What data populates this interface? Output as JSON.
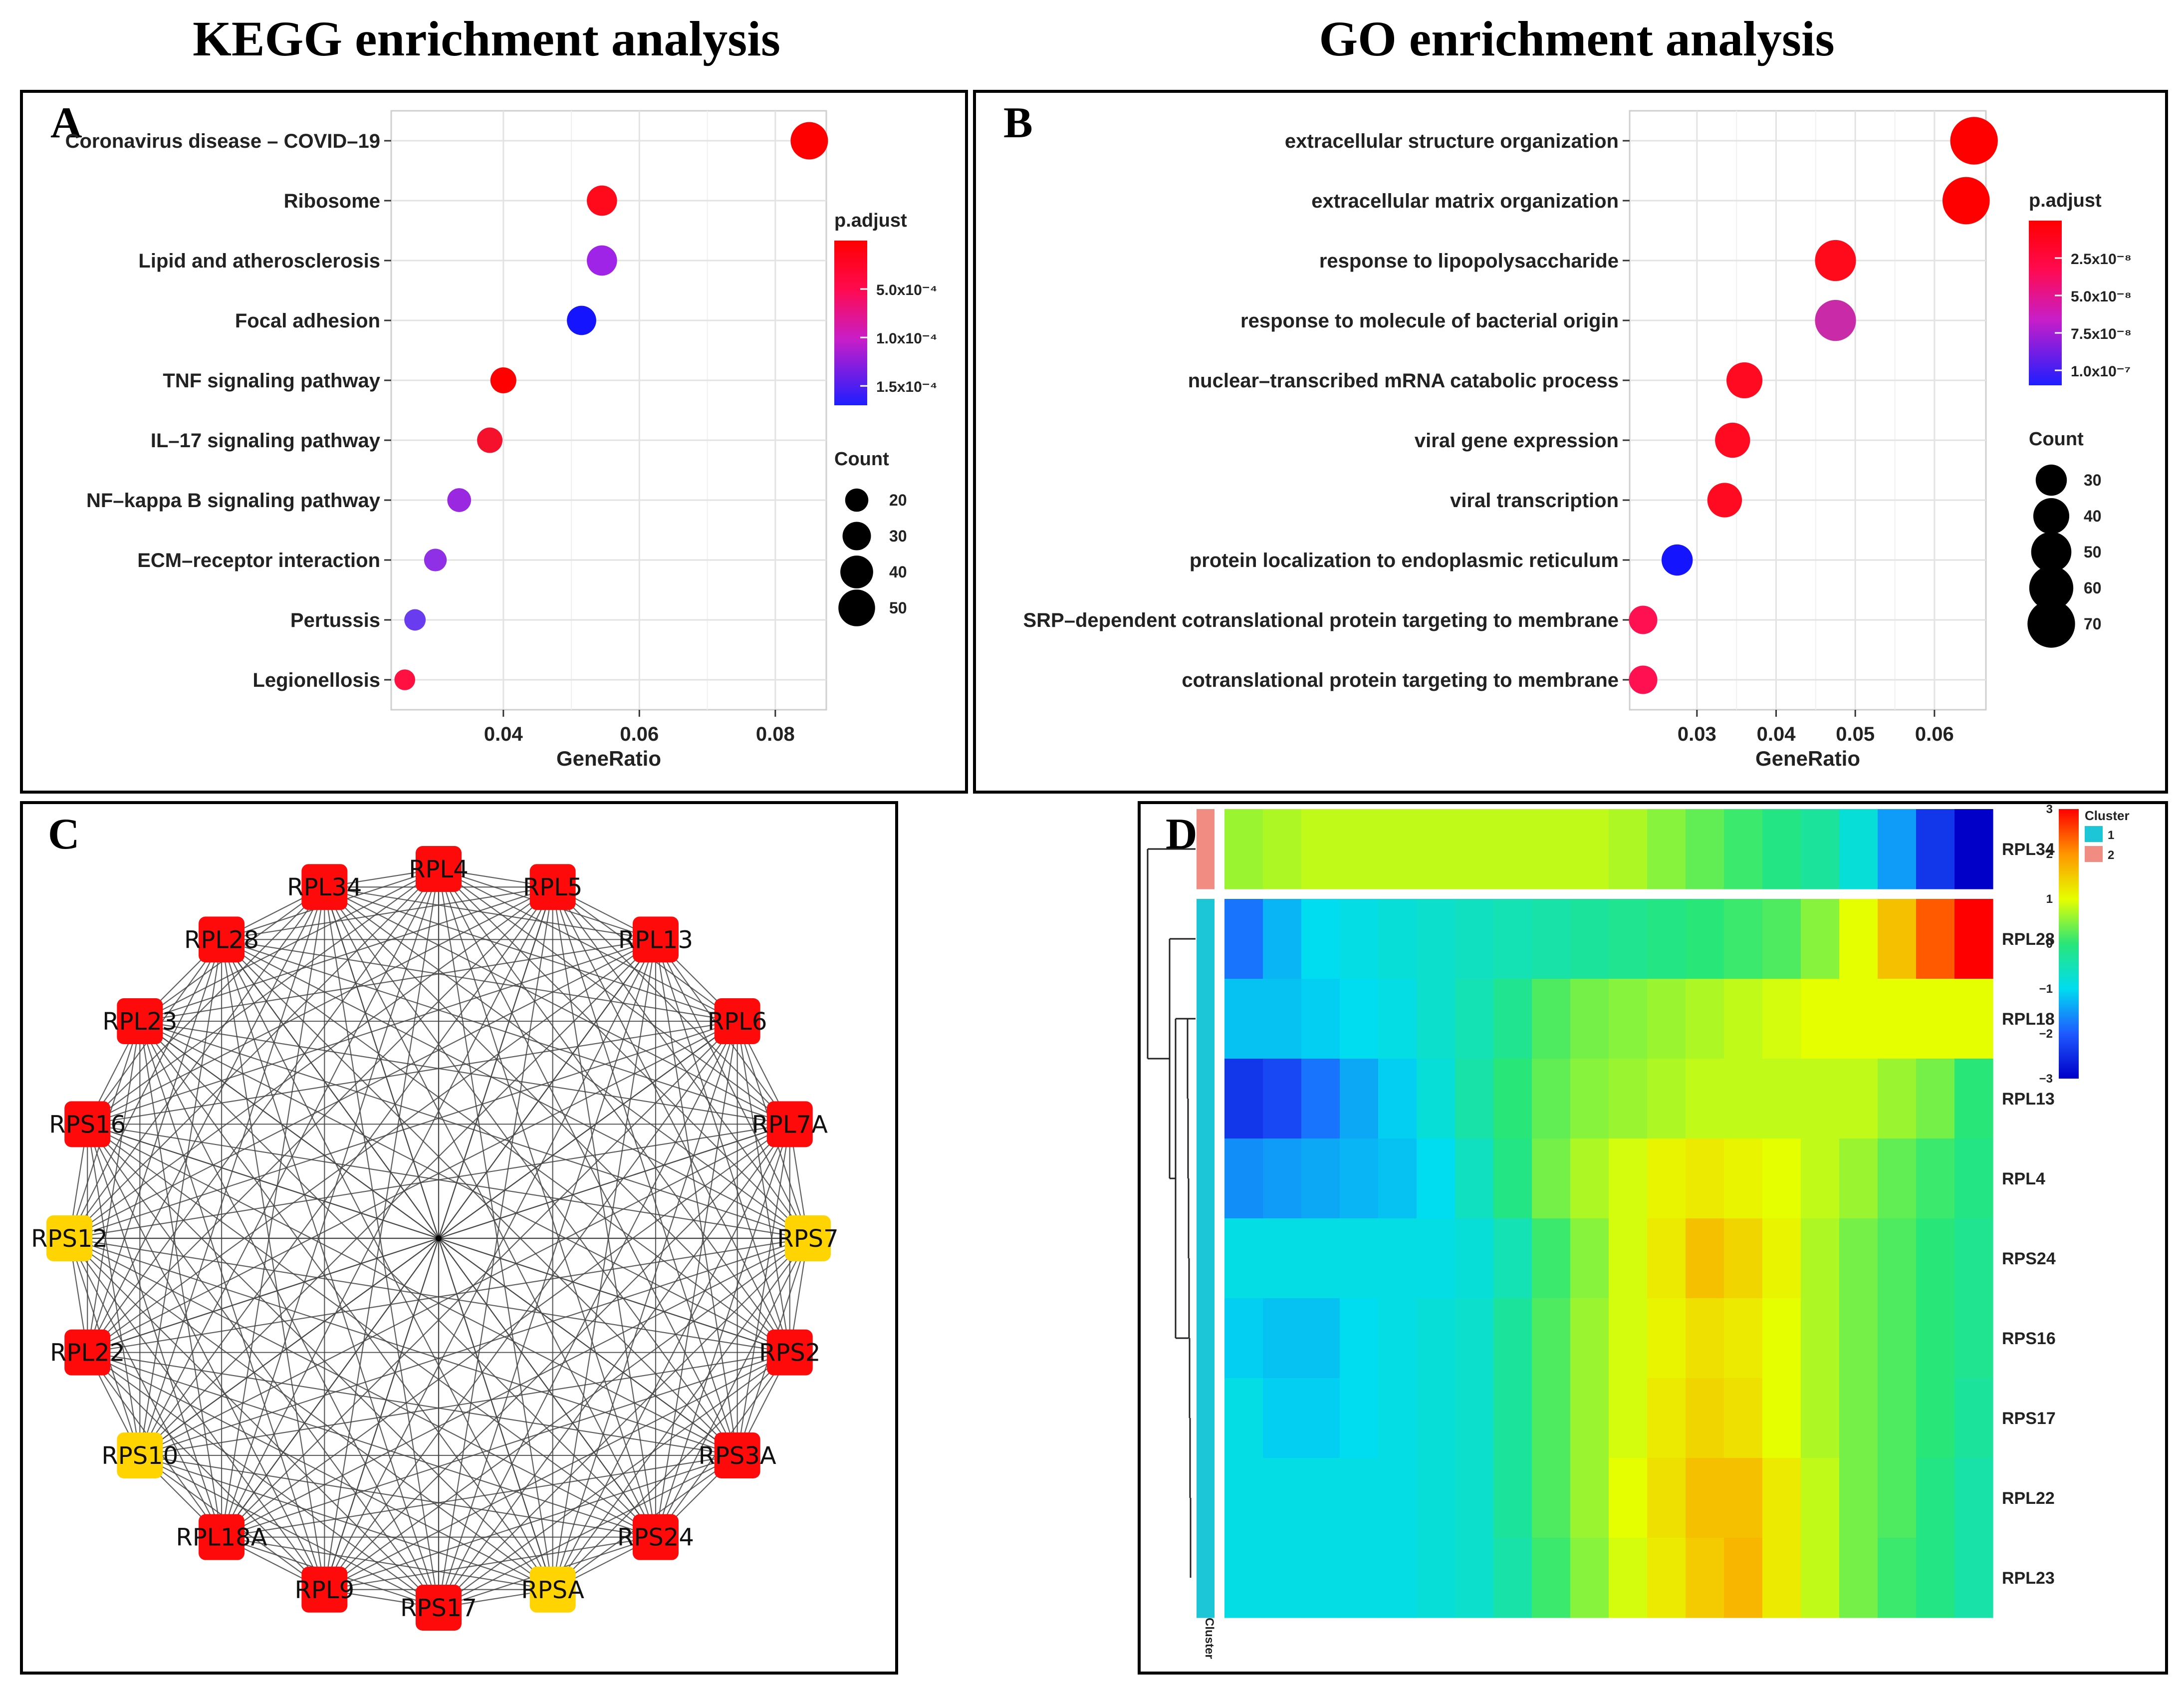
{
  "headings": {
    "kegg": "KEGG enrichment analysis",
    "go": "GO enrichment analysis"
  },
  "panels": {
    "a": "A",
    "b": "B",
    "c": "C",
    "d": "D"
  },
  "chart_data": [
    {
      "panel": "A",
      "type": "scatter",
      "xlabel": "GeneRatio",
      "xticks": [
        0.04,
        0.06,
        0.08
      ],
      "xtick_labels": [
        "0.04",
        "0.06",
        "0.08"
      ],
      "xlim": [
        0.0235,
        0.0875
      ],
      "categories": [
        "Coronavirus disease – COVID–19",
        "Ribosome",
        "Lipid and atherosclerosis",
        "Focal adhesion",
        "TNF signaling pathway",
        "IL–17 signaling pathway",
        "NF–kappa B signaling pathway",
        "ECM–receptor interaction",
        "Pertussis",
        "Legionellosis"
      ],
      "gene_ratio": [
        0.085,
        0.0545,
        0.0545,
        0.0515,
        0.04,
        0.038,
        0.0335,
        0.03,
        0.027,
        0.0255
      ],
      "count": [
        52,
        34,
        34,
        32,
        25,
        24,
        21,
        19,
        17,
        16
      ],
      "p_adjust_color": [
        "#ff0000",
        "#ff0a1a",
        "#a024e8",
        "#1414ff",
        "#ff0000",
        "#f5102c",
        "#9a28e0",
        "#8f30e6",
        "#6a3cef",
        "#ff1040"
      ],
      "legend": {
        "color_title": "p.adjust",
        "color_ticks": [
          "5.0x10⁻⁴",
          "1.0x10⁻⁴",
          "1.5x10⁻⁴"
        ],
        "size_title": "Count",
        "size_values": [
          20,
          30,
          40,
          50
        ]
      },
      "grid": true
    },
    {
      "panel": "B",
      "type": "scatter",
      "xlabel": "GeneRatio",
      "xticks": [
        0.03,
        0.04,
        0.05,
        0.06
      ],
      "xtick_labels": [
        "0.03",
        "0.04",
        "0.05",
        "0.06"
      ],
      "xlim": [
        0.0215,
        0.0665
      ],
      "categories": [
        "extracellular structure organization",
        "extracellular matrix organization",
        "response to lipopolysaccharide",
        "response to molecule of bacterial origin",
        "nuclear–transcribed mRNA catabolic process",
        "viral gene expression",
        "viral transcription",
        "protein localization to endoplasmic reticulum",
        "SRP–dependent cotranslational protein targeting to membrane",
        "cotranslational protein targeting to membrane"
      ],
      "gene_ratio": [
        0.065,
        0.064,
        0.0475,
        0.0475,
        0.036,
        0.0345,
        0.0335,
        0.0275,
        0.0232,
        0.0232
      ],
      "count": [
        70,
        69,
        52,
        52,
        40,
        38,
        37,
        30,
        25,
        25
      ],
      "p_adjust_color": [
        "#ff0000",
        "#ff0000",
        "#ff0a1a",
        "#c82aa8",
        "#ff0a20",
        "#ff0a20",
        "#ff0a20",
        "#1414ff",
        "#ff1050",
        "#ff1050"
      ],
      "legend": {
        "color_title": "p.adjust",
        "color_ticks": [
          "2.5x10⁻⁸",
          "5.0x10⁻⁸",
          "7.5x10⁻⁸",
          "1.0x10⁻⁷"
        ],
        "size_title": "Count",
        "size_values": [
          30,
          40,
          50,
          60,
          70
        ]
      },
      "grid": true
    },
    {
      "panel": "C",
      "type": "network",
      "nodes": [
        {
          "label": "RPL4",
          "color": "red"
        },
        {
          "label": "RPL5",
          "color": "red"
        },
        {
          "label": "RPL13",
          "color": "red"
        },
        {
          "label": "RPL6",
          "color": "red"
        },
        {
          "label": "RPL7A",
          "color": "red"
        },
        {
          "label": "RPS7",
          "color": "yellow"
        },
        {
          "label": "RPS2",
          "color": "red"
        },
        {
          "label": "RPS3A",
          "color": "red"
        },
        {
          "label": "RPS24",
          "color": "red"
        },
        {
          "label": "RPSA",
          "color": "yellow"
        },
        {
          "label": "RPS17",
          "color": "red"
        },
        {
          "label": "RPL9",
          "color": "red"
        },
        {
          "label": "RPL18A",
          "color": "red"
        },
        {
          "label": "RPS10",
          "color": "yellow"
        },
        {
          "label": "RPL22",
          "color": "red"
        },
        {
          "label": "RPS12",
          "color": "yellow"
        },
        {
          "label": "RPS16",
          "color": "red"
        },
        {
          "label": "RPL23",
          "color": "red"
        },
        {
          "label": "RPL28",
          "color": "red"
        },
        {
          "label": "RPL34",
          "color": "red"
        }
      ],
      "edges": "complete graph among all nodes plus hub at center"
    },
    {
      "panel": "D",
      "type": "heatmap",
      "rows": [
        "RPL34",
        "RPL28",
        "RPL18",
        "RPL13",
        "RPL4",
        "RPS24",
        "RPS16",
        "RPS17",
        "RPL22",
        "RPL23"
      ],
      "row_cluster": [
        2,
        1,
        1,
        1,
        1,
        1,
        1,
        1,
        1,
        1
      ],
      "n_columns": 20,
      "values": [
        [
          0.6,
          0.7,
          0.8,
          0.8,
          0.8,
          0.8,
          0.8,
          0.8,
          0.8,
          0.8,
          0.7,
          0.5,
          0.3,
          0.1,
          -0.1,
          -0.3,
          -0.8,
          -1.5,
          -2.4,
          -3.0
        ],
        [
          -1.8,
          -1.3,
          -1.0,
          -0.9,
          -0.8,
          -0.7,
          -0.6,
          -0.5,
          -0.4,
          -0.3,
          -0.2,
          -0.1,
          0.0,
          0.1,
          0.2,
          0.5,
          1.0,
          1.6,
          2.4,
          3.0
        ],
        [
          -1.2,
          -1.2,
          -1.1,
          -1.0,
          -0.9,
          -0.7,
          -0.5,
          -0.2,
          0.2,
          0.4,
          0.5,
          0.6,
          0.7,
          0.8,
          0.9,
          1.0,
          1.0,
          1.0,
          1.0,
          1.0
        ],
        [
          -2.4,
          -2.2,
          -1.8,
          -1.4,
          -1.1,
          -0.8,
          -0.4,
          0.0,
          0.3,
          0.5,
          0.6,
          0.7,
          0.8,
          0.8,
          0.8,
          0.8,
          0.8,
          0.6,
          0.4,
          0.0
        ],
        [
          -1.6,
          -1.5,
          -1.4,
          -1.3,
          -1.2,
          -1.0,
          -0.6,
          -0.1,
          0.4,
          0.7,
          0.9,
          1.1,
          1.2,
          1.1,
          1.0,
          0.8,
          0.6,
          0.3,
          0.1,
          -0.1
        ],
        [
          -0.9,
          -0.9,
          -0.9,
          -0.9,
          -0.9,
          -0.9,
          -0.8,
          -0.5,
          0.1,
          0.5,
          0.9,
          1.2,
          1.6,
          1.4,
          1.1,
          0.7,
          0.4,
          0.2,
          0.0,
          -0.2
        ],
        [
          -1.1,
          -1.2,
          -1.2,
          -1.0,
          -0.9,
          -0.8,
          -0.7,
          -0.3,
          0.2,
          0.6,
          0.9,
          1.1,
          1.3,
          1.2,
          1.0,
          0.7,
          0.4,
          0.2,
          0.0,
          -0.2
        ],
        [
          -0.9,
          -1.1,
          -1.1,
          -1.0,
          -0.9,
          -0.8,
          -0.7,
          -0.3,
          0.2,
          0.6,
          0.9,
          1.2,
          1.4,
          1.3,
          1.0,
          0.7,
          0.4,
          0.2,
          0.0,
          -0.3
        ],
        [
          -0.9,
          -0.9,
          -0.9,
          -0.9,
          -0.9,
          -0.8,
          -0.7,
          -0.3,
          0.2,
          0.6,
          1.0,
          1.3,
          1.6,
          1.6,
          1.2,
          0.8,
          0.4,
          0.2,
          -0.1,
          -0.4
        ],
        [
          -0.9,
          -0.9,
          -0.9,
          -0.9,
          -0.9,
          -0.8,
          -0.7,
          -0.4,
          0.1,
          0.5,
          0.9,
          1.2,
          1.5,
          1.7,
          1.2,
          0.8,
          0.4,
          0.1,
          -0.1,
          -0.4
        ]
      ],
      "color_scale": {
        "ticks": [
          "3",
          "2",
          "1",
          "0",
          "−1",
          "−2",
          "−3"
        ],
        "vmin": -3,
        "vmax": 3
      },
      "legend": {
        "title": "Cluster",
        "items": [
          {
            "label": "1",
            "color": "#1cc6d6"
          },
          {
            "label": "2",
            "color": "#f08c82"
          }
        ]
      },
      "annotation_label": "Cluster"
    }
  ]
}
